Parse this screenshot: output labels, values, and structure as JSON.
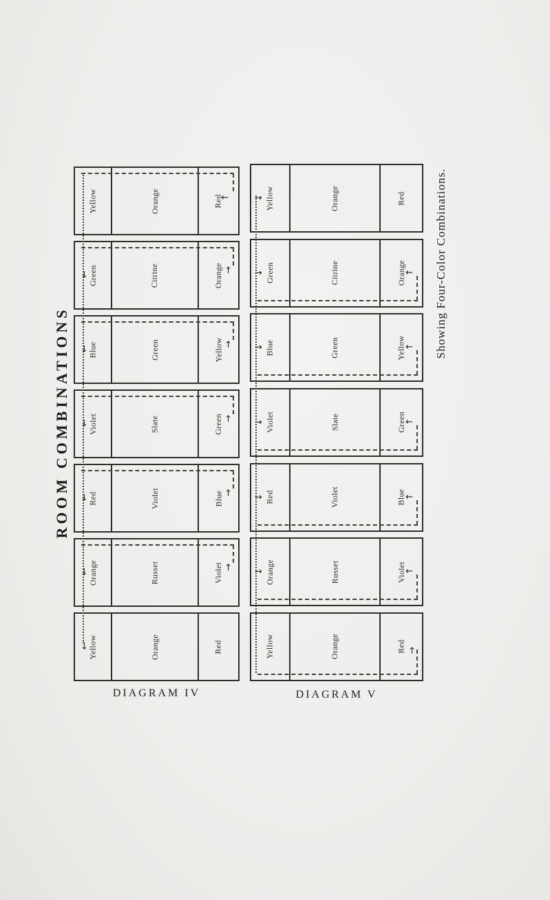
{
  "page": {
    "title": "ROOM COMBINATIONS",
    "side_caption": "Showing Four-Color Combinations.",
    "paper_color": "#efeeec",
    "ink_color": "#2e2d2a"
  },
  "icons": {
    "arrow_up": "↑",
    "arrow_down": "↓",
    "arrow_left": "←",
    "arrow_right": "→"
  },
  "diagrams": [
    {
      "caption": "DIAGRAM IV",
      "dash_edge": "top",
      "left_arrow_dir": "down",
      "strips": [
        {
          "left": "Yellow",
          "middle": "Orange",
          "right": "Red",
          "dash": true,
          "left_arrow": false,
          "right_arrow": true,
          "right_dir": "left"
        },
        {
          "left": "Green",
          "middle": "Citrine",
          "right": "Orange",
          "dash": true,
          "left_arrow": true,
          "right_arrow": true,
          "right_dir": "up"
        },
        {
          "left": "Blue",
          "middle": "Green",
          "right": "Yellow",
          "dash": true,
          "left_arrow": true,
          "right_arrow": true,
          "right_dir": "up"
        },
        {
          "left": "Violet",
          "middle": "Slate",
          "right": "Green",
          "dash": true,
          "left_arrow": true,
          "right_arrow": true,
          "right_dir": "up"
        },
        {
          "left": "Red",
          "middle": "Violet",
          "right": "Blue",
          "dash": true,
          "left_arrow": true,
          "right_arrow": true,
          "right_dir": "up"
        },
        {
          "left": "Orange",
          "middle": "Russet",
          "right": "Violet",
          "dash": true,
          "left_arrow": true,
          "right_arrow": true,
          "right_dir": "up"
        },
        {
          "left": "Yellow",
          "middle": "Orange",
          "right": "Red",
          "dash": false,
          "left_arrow": true,
          "right_arrow": false,
          "right_dir": "up"
        }
      ]
    },
    {
      "caption": "DIAGRAM V",
      "dash_edge": "bottom",
      "left_arrow_dir": "right",
      "strips": [
        {
          "left": "Yellow",
          "middle": "Orange",
          "right": "Red",
          "dash": false,
          "left_arrow": true,
          "right_arrow": false,
          "right_dir": "left"
        },
        {
          "left": "Green",
          "middle": "Citrine",
          "right": "Orange",
          "dash": true,
          "left_arrow": true,
          "right_arrow": true,
          "right_dir": "left"
        },
        {
          "left": "Blue",
          "middle": "Green",
          "right": "Yellow",
          "dash": true,
          "left_arrow": true,
          "right_arrow": true,
          "right_dir": "left"
        },
        {
          "left": "Violet",
          "middle": "Slate",
          "right": "Green",
          "dash": true,
          "left_arrow": true,
          "right_arrow": true,
          "right_dir": "left"
        },
        {
          "left": "Red",
          "middle": "Violet",
          "right": "Blue",
          "dash": true,
          "left_arrow": true,
          "right_arrow": true,
          "right_dir": "left"
        },
        {
          "left": "Orange",
          "middle": "Russet",
          "right": "Violet",
          "dash": true,
          "left_arrow": true,
          "right_arrow": true,
          "right_dir": "left"
        },
        {
          "left": "Yellow",
          "middle": "Orange",
          "right": "Red",
          "dash": true,
          "left_arrow": false,
          "right_arrow": true,
          "right_dir": "up"
        }
      ]
    }
  ]
}
